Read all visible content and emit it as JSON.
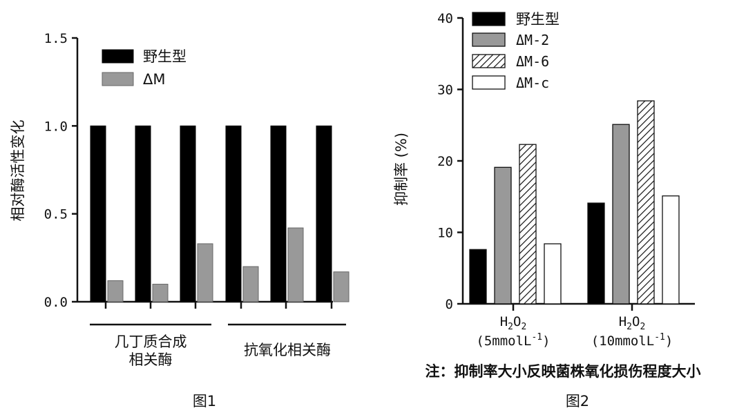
{
  "colors": {
    "wild": "#000000",
    "dm": "#999999",
    "dm2": "#999999",
    "dm6": "hatch",
    "dmc": "#ffffff"
  },
  "chart_data": [
    {
      "type": "bar",
      "title": "图1",
      "ylabel": "相对酶活性变化",
      "xlabel": "",
      "ylim": [
        0,
        1.5
      ],
      "yticks": [
        "0.0",
        "0.5",
        "1.0",
        "1.5"
      ],
      "groups": [
        "几丁质合成相关酶",
        "抗氧化相关酶"
      ],
      "group_label_lines": [
        [
          "几丁质合成",
          "相关酶"
        ],
        [
          "抗氧化相关酶"
        ]
      ],
      "bars_per_group": 3,
      "legend": [
        "野生型",
        "ΔM"
      ],
      "legend_position": "top-left",
      "series": [
        {
          "name": "野生型",
          "values": [
            1.0,
            1.0,
            1.0,
            1.0,
            1.0,
            1.0
          ]
        },
        {
          "name": "ΔM",
          "values": [
            0.12,
            0.1,
            0.33,
            0.2,
            0.42,
            0.17
          ]
        }
      ]
    },
    {
      "type": "bar",
      "title": "图2",
      "ylabel": "抑制率 (%)",
      "xlabel": "",
      "ylim": [
        0,
        40
      ],
      "yticks": [
        "0",
        "10",
        "20",
        "30",
        "40"
      ],
      "categories": [
        {
          "chem": [
            "H",
            "2",
            "O",
            "2"
          ],
          "conc_prefix": "(5mmolL",
          "conc_sup": "-1",
          "conc_suffix": ")"
        },
        {
          "chem": [
            "H",
            "2",
            "O",
            "2"
          ],
          "conc_prefix": "(10mmolL",
          "conc_sup": "-1",
          "conc_suffix": ")"
        }
      ],
      "legend": [
        "野生型",
        "ΔM-2",
        "ΔM-6",
        "ΔM-c"
      ],
      "legend_position": "top-left",
      "series": [
        {
          "name": "野生型",
          "values": [
            7.6,
            14.1
          ]
        },
        {
          "name": "ΔM-2",
          "values": [
            19.1,
            25.1
          ]
        },
        {
          "name": "ΔM-6",
          "values": [
            22.3,
            28.4
          ]
        },
        {
          "name": "ΔM-c",
          "values": [
            8.4,
            15.1
          ]
        }
      ],
      "note": "注：抑制率大小反映菌株氧化损伤程度大小"
    }
  ]
}
